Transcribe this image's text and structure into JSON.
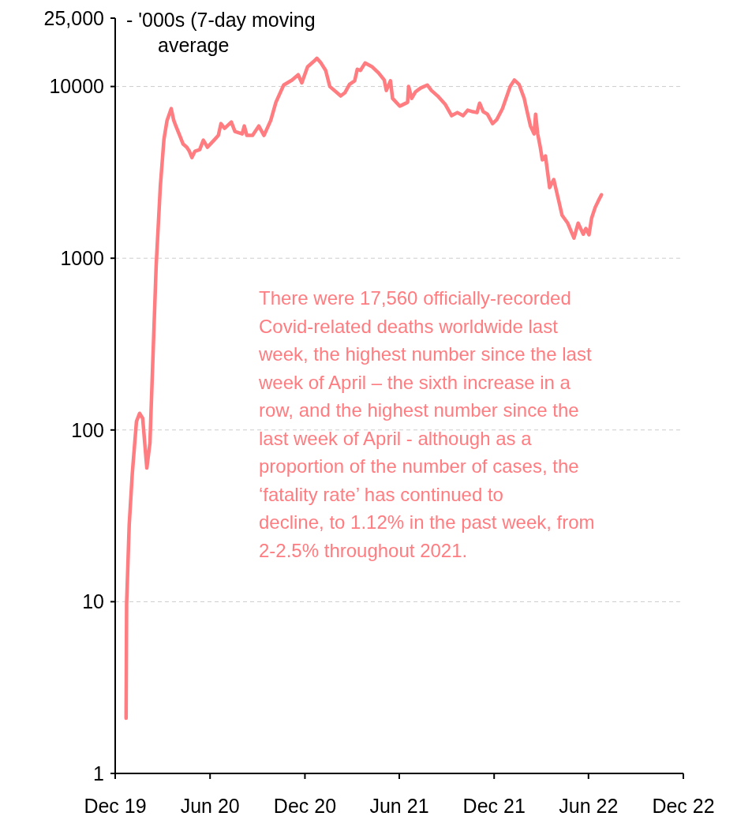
{
  "chart_data": {
    "type": "line",
    "ylabel": "- '000s (7-day moving average",
    "log": "y",
    "grid": "y",
    "line_style": "solid",
    "marker": "none",
    "xlim": [
      "2019-12-01",
      "2022-12-01"
    ],
    "xticks": [
      {
        "value": "2019-12-01",
        "label": "Dec 19"
      },
      {
        "value": "2020-06-01",
        "label": "Jun 20"
      },
      {
        "value": "2020-12-01",
        "label": "Dec 20"
      },
      {
        "value": "2021-06-01",
        "label": "Jun 21"
      },
      {
        "value": "2021-12-01",
        "label": "Dec 21"
      },
      {
        "value": "2022-06-01",
        "label": "Jun 22"
      },
      {
        "value": "2022-12-01",
        "label": "Dec 22"
      }
    ],
    "ylim": [
      1,
      25000
    ],
    "yticks": [
      1,
      10,
      100,
      1000,
      10000,
      {
        "value": 25000,
        "label": "25,000"
      }
    ],
    "annotations": [
      "There were 17,560 officially-recorded Covid-related deaths worldwide last week, the highest number since the last week of April – the sixth increase in a row, and the highest number since the last week of April - although as a proportion of the number of cases, the ‘fatality rate’ has continued to decline, to 1.12% in the past week, from 2-2.5% throughout 2021."
    ],
    "series": [
      {
        "color": "#ff7c80",
        "x": [
          "2019-12-22",
          "2019-12-23",
          "2019-12-28",
          "2020-01-03",
          "2020-01-11",
          "2020-01-17",
          "2020-01-23",
          "2020-01-31",
          "2020-02-06",
          "2020-02-18",
          "2020-02-26",
          "2020-03-04",
          "2020-03-10",
          "2020-03-18",
          "2020-03-23",
          "2020-03-27",
          "2020-04-04",
          "2020-04-10",
          "2020-04-17",
          "2020-04-22",
          "2020-04-27",
          "2020-05-03",
          "2020-05-12",
          "2020-05-19",
          "2020-05-27",
          "2020-06-10",
          "2020-06-17",
          "2020-06-22",
          "2020-06-29",
          "2020-07-12",
          "2020-07-19",
          "2020-08-02",
          "2020-08-06",
          "2020-08-11",
          "2020-08-22",
          "2020-09-03",
          "2020-09-13",
          "2020-09-26",
          "2020-10-06",
          "2020-10-21",
          "2020-11-06",
          "2020-11-18",
          "2020-11-25",
          "2020-12-06",
          "2020-12-18",
          "2020-12-24",
          "2021-01-01",
          "2021-01-10",
          "2021-01-18",
          "2021-02-08",
          "2021-02-16",
          "2021-02-25",
          "2021-03-07",
          "2021-03-12",
          "2021-03-18",
          "2021-03-27",
          "2021-04-10",
          "2021-04-22",
          "2021-05-03",
          "2021-05-07",
          "2021-05-15",
          "2021-05-19",
          "2021-06-02",
          "2021-06-17",
          "2021-06-19",
          "2021-06-25",
          "2021-07-02",
          "2021-07-12",
          "2021-07-25",
          "2021-08-02",
          "2021-08-14",
          "2021-08-29",
          "2021-09-10",
          "2021-09-21",
          "2021-10-02",
          "2021-10-11",
          "2021-10-21",
          "2021-10-29",
          "2021-11-03",
          "2021-11-10",
          "2021-11-18",
          "2021-11-28",
          "2021-12-06",
          "2021-12-17",
          "2022-01-01",
          "2022-01-09",
          "2022-01-18",
          "2022-01-28",
          "2022-02-02",
          "2022-02-09",
          "2022-02-16",
          "2022-02-19",
          "2022-02-23",
          "2022-02-28",
          "2022-03-04",
          "2022-03-10",
          "2022-03-18",
          "2022-03-26",
          "2022-04-04",
          "2022-04-11",
          "2022-04-22",
          "2022-05-04",
          "2022-05-12",
          "2022-05-22",
          "2022-05-27",
          "2022-06-02",
          "2022-06-07",
          "2022-06-14",
          "2022-06-22",
          "2022-06-26"
        ],
        "values": [
          2.1,
          9.7,
          28,
          56,
          112,
          125,
          117,
          60,
          84,
          904,
          2610,
          4920,
          6340,
          7430,
          6340,
          5890,
          5130,
          4620,
          4430,
          4200,
          3860,
          4200,
          4290,
          4870,
          4430,
          4920,
          5190,
          6080,
          5710,
          6210,
          5470,
          5300,
          5890,
          5190,
          5190,
          5890,
          5190,
          6340,
          8090,
          10200,
          10900,
          11700,
          10500,
          13000,
          14000,
          14600,
          13700,
          12400,
          10000,
          8810,
          9190,
          10300,
          10800,
          12600,
          12400,
          13700,
          13000,
          12000,
          10900,
          9480,
          10800,
          8530,
          7680,
          8090,
          10000,
          8530,
          9290,
          9790,
          10200,
          9480,
          8810,
          7840,
          6760,
          7050,
          6760,
          7280,
          7130,
          7050,
          8000,
          7130,
          6900,
          6080,
          6410,
          7430,
          10000,
          10900,
          10300,
          8530,
          7280,
          5890,
          5300,
          6900,
          5300,
          4430,
          3740,
          3940,
          2580,
          2870,
          2200,
          1780,
          1600,
          1310,
          1600,
          1380,
          1490,
          1370,
          1710,
          1980,
          2220,
          2340
        ]
      }
    ]
  }
}
